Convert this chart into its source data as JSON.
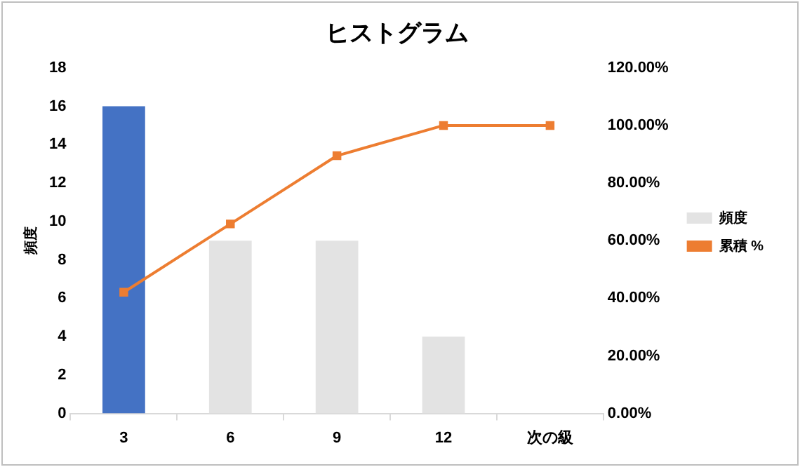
{
  "chart_data": {
    "type": "bar",
    "title": "ヒストグラム",
    "ylabel": "頻度",
    "categories": [
      "3",
      "6",
      "9",
      "12",
      "次の級"
    ],
    "series": [
      {
        "name": "頻度",
        "color": "#e3e3e3",
        "colors": [
          "#4472c4",
          "#e3e3e3",
          "#e3e3e3",
          "#e3e3e3",
          "#e3e3e3"
        ],
        "values": [
          16,
          9,
          9,
          4,
          0
        ]
      },
      {
        "name": "累積 %",
        "type": "line",
        "axis": "y2",
        "color": "#ed7d31",
        "values": [
          42.1,
          65.8,
          89.5,
          100,
          100
        ]
      }
    ],
    "ylim": [
      0,
      18
    ],
    "yticks": [
      0,
      2,
      4,
      6,
      8,
      10,
      12,
      14,
      16,
      18
    ],
    "y2lim": [
      0,
      120
    ],
    "y2ticks": [
      {
        "value": 0,
        "label": "0.00%"
      },
      {
        "value": 20,
        "label": "20.00%"
      },
      {
        "value": 40,
        "label": "40.00%"
      },
      {
        "value": 60,
        "label": "60.00%"
      },
      {
        "value": 80,
        "label": "80.00%"
      },
      {
        "value": 100,
        "label": "100.00%"
      },
      {
        "value": 120,
        "label": "120.00%"
      }
    ],
    "grid": false,
    "legend": "right",
    "marker": "square",
    "line_style": "solid"
  }
}
